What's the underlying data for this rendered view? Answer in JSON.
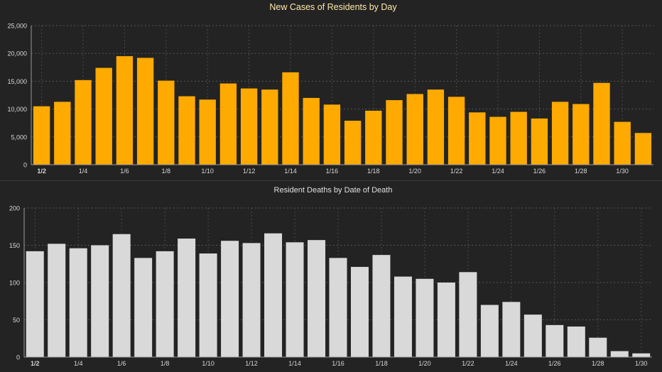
{
  "chart_data": [
    {
      "type": "bar",
      "title": "New Cases of Residents by Day",
      "xlabel": "",
      "ylabel": "",
      "ylim": [
        0,
        25000
      ],
      "yticks": [
        0,
        5000,
        10000,
        15000,
        20000,
        25000
      ],
      "ytick_labels": [
        "0",
        "5,000",
        "10,000",
        "15,000",
        "20,000",
        "25,000"
      ],
      "grid": true,
      "color": "#FFAA00",
      "categories": [
        "1/2",
        "1/3",
        "1/4",
        "1/5",
        "1/6",
        "1/7",
        "1/8",
        "1/9",
        "1/10",
        "1/11",
        "1/12",
        "1/13",
        "1/14",
        "1/15",
        "1/16",
        "1/17",
        "1/18",
        "1/19",
        "1/20",
        "1/21",
        "1/22",
        "1/23",
        "1/24",
        "1/25",
        "1/26",
        "1/27",
        "1/28",
        "1/29",
        "1/30",
        "1/31"
      ],
      "xtick_labels": [
        "1/2",
        "1/4",
        "1/6",
        "1/8",
        "1/10",
        "1/12",
        "1/14",
        "1/16",
        "1/18",
        "1/20",
        "1/22",
        "1/24",
        "1/26",
        "1/28",
        "1/30"
      ],
      "values": [
        10500,
        11300,
        15200,
        17400,
        19500,
        19200,
        15100,
        12300,
        11700,
        14600,
        13700,
        13500,
        16600,
        12000,
        10800,
        7900,
        9700,
        11600,
        12700,
        13500,
        12200,
        9400,
        8600,
        9500,
        8300,
        11300,
        10900,
        14700,
        7700,
        5700
      ]
    },
    {
      "type": "bar",
      "title": "Resident Deaths by Date of Death",
      "xlabel": "",
      "ylabel": "",
      "ylim": [
        0,
        200
      ],
      "yticks": [
        0,
        50,
        100,
        150,
        200
      ],
      "ytick_labels": [
        "0",
        "50",
        "100",
        "150",
        "200"
      ],
      "grid": true,
      "color": "#D9D9D9",
      "categories": [
        "1/2",
        "1/3",
        "1/4",
        "1/5",
        "1/6",
        "1/7",
        "1/8",
        "1/9",
        "1/10",
        "1/11",
        "1/12",
        "1/13",
        "1/14",
        "1/15",
        "1/16",
        "1/17",
        "1/18",
        "1/19",
        "1/20",
        "1/21",
        "1/22",
        "1/23",
        "1/24",
        "1/25",
        "1/26",
        "1/27",
        "1/28",
        "1/29",
        "1/30"
      ],
      "xtick_labels": [
        "1/2",
        "1/4",
        "1/6",
        "1/8",
        "1/10",
        "1/12",
        "1/14",
        "1/16",
        "1/18",
        "1/20",
        "1/22",
        "1/24",
        "1/26",
        "1/28",
        "1/30"
      ],
      "values": [
        142,
        152,
        146,
        150,
        165,
        133,
        142,
        159,
        139,
        156,
        153,
        166,
        154,
        157,
        133,
        121,
        137,
        108,
        105,
        100,
        114,
        70,
        74,
        57,
        43,
        41,
        26,
        8,
        5
      ]
    }
  ]
}
